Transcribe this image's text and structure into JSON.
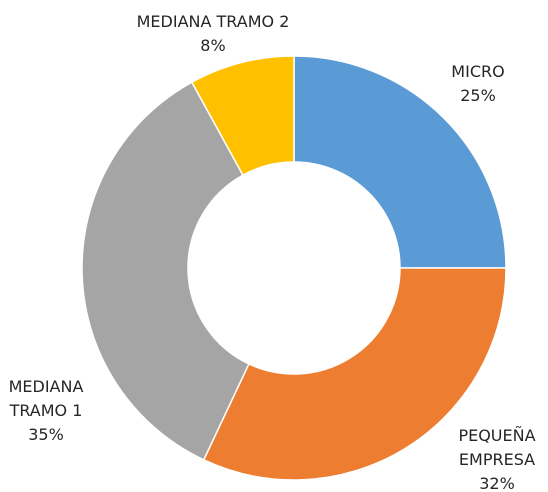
{
  "chart_data": {
    "type": "donut",
    "categories": [
      "MICRO",
      "PEQUEÑA EMPRESA",
      "MEDIANA TRAMO 1",
      "MEDIANA TRAMO 2"
    ],
    "values": [
      25,
      32,
      35,
      8
    ],
    "value_labels": [
      "25%",
      "32%",
      "35%",
      "8%"
    ],
    "colors": [
      "#5b9bd5",
      "#ed7d31",
      "#a5a5a5",
      "#ffc000"
    ]
  }
}
